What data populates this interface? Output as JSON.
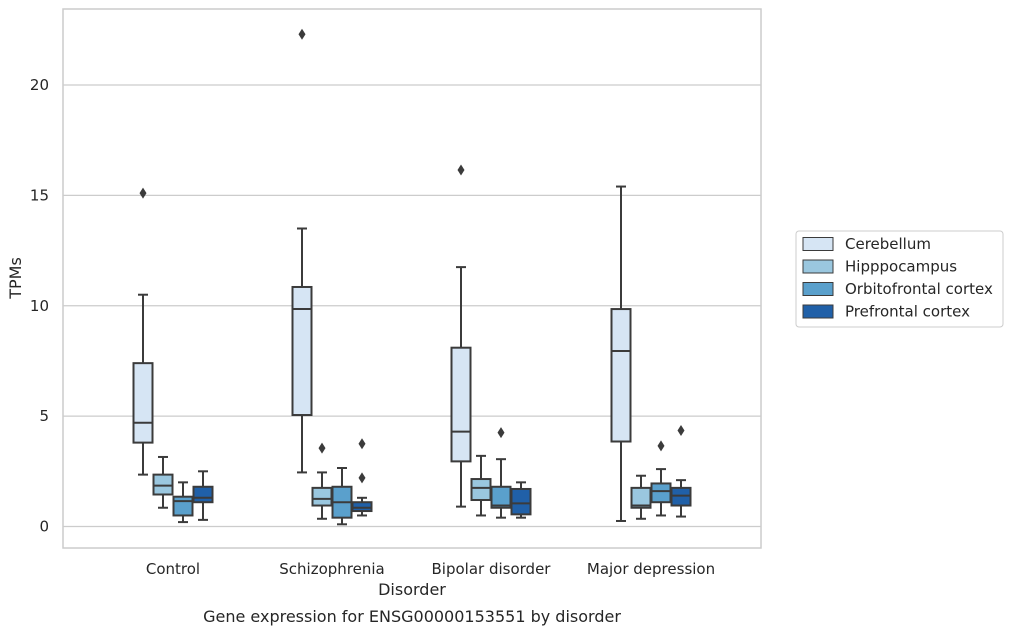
{
  "chart_data": {
    "type": "box",
    "title": "",
    "caption": "Gene expression for ENSG00000153551 by disorder",
    "xlabel": "Disorder",
    "ylabel": "TPMs",
    "ylim": [
      -1,
      23.5
    ],
    "yticks": [
      0,
      5,
      10,
      15,
      20
    ],
    "grid": "horizontal",
    "legend_position": "right",
    "categories": [
      "Control",
      "Schizophrenia",
      "Bipolar disorder",
      "Major depression"
    ],
    "series": [
      {
        "name": "Cerebellum",
        "color": "#d6e5f4",
        "boxes": [
          {
            "whisker_low": 2.35,
            "q1": 3.8,
            "median": 4.7,
            "q3": 7.4,
            "whisker_high": 10.5,
            "outliers": [
              15.1
            ]
          },
          {
            "whisker_low": 2.45,
            "q1": 5.05,
            "median": 9.85,
            "q3": 10.85,
            "whisker_high": 13.5,
            "outliers": [
              22.3
            ]
          },
          {
            "whisker_low": 0.9,
            "q1": 2.95,
            "median": 4.3,
            "q3": 8.1,
            "whisker_high": 11.75,
            "outliers": [
              16.15
            ]
          },
          {
            "whisker_low": 0.25,
            "q1": 3.85,
            "median": 7.95,
            "q3": 9.85,
            "whisker_high": 15.4,
            "outliers": []
          }
        ]
      },
      {
        "name": "Hipppocampus",
        "color": "#9ac7df",
        "boxes": [
          {
            "whisker_low": 0.85,
            "q1": 1.45,
            "median": 1.85,
            "q3": 2.35,
            "whisker_high": 3.15,
            "outliers": []
          },
          {
            "whisker_low": 0.35,
            "q1": 0.95,
            "median": 1.25,
            "q3": 1.75,
            "whisker_high": 2.45,
            "outliers": [
              3.55
            ]
          },
          {
            "whisker_low": 0.5,
            "q1": 1.2,
            "median": 1.75,
            "q3": 2.15,
            "whisker_high": 3.2,
            "outliers": []
          },
          {
            "whisker_low": 0.35,
            "q1": 0.85,
            "median": 0.95,
            "q3": 1.75,
            "whisker_high": 2.3,
            "outliers": []
          }
        ]
      },
      {
        "name": "Orbitofrontal cortex",
        "color": "#5aa0cc",
        "boxes": [
          {
            "whisker_low": 0.2,
            "q1": 0.5,
            "median": 1.15,
            "q3": 1.35,
            "whisker_high": 2.0,
            "outliers": []
          },
          {
            "whisker_low": 0.1,
            "q1": 0.4,
            "median": 1.1,
            "q3": 1.8,
            "whisker_high": 2.65,
            "outliers": []
          },
          {
            "whisker_low": 0.4,
            "q1": 0.85,
            "median": 0.95,
            "q3": 1.8,
            "whisker_high": 3.05,
            "outliers": [
              4.25
            ]
          },
          {
            "whisker_low": 0.5,
            "q1": 1.1,
            "median": 1.6,
            "q3": 1.95,
            "whisker_high": 2.6,
            "outliers": [
              3.65
            ]
          }
        ]
      },
      {
        "name": "Prefrontal cortex",
        "color": "#2060a8",
        "boxes": [
          {
            "whisker_low": 0.3,
            "q1": 1.1,
            "median": 1.3,
            "q3": 1.8,
            "whisker_high": 2.5,
            "outliers": []
          },
          {
            "whisker_low": 0.5,
            "q1": 0.7,
            "median": 0.85,
            "q3": 1.1,
            "whisker_high": 1.3,
            "outliers": [
              3.75,
              2.2
            ]
          },
          {
            "whisker_low": 0.4,
            "q1": 0.55,
            "median": 1.05,
            "q3": 1.7,
            "whisker_high": 2.0,
            "outliers": []
          },
          {
            "whisker_low": 0.45,
            "q1": 0.95,
            "median": 1.4,
            "q3": 1.75,
            "whisker_high": 2.1,
            "outliers": [
              4.35
            ]
          }
        ]
      }
    ]
  }
}
